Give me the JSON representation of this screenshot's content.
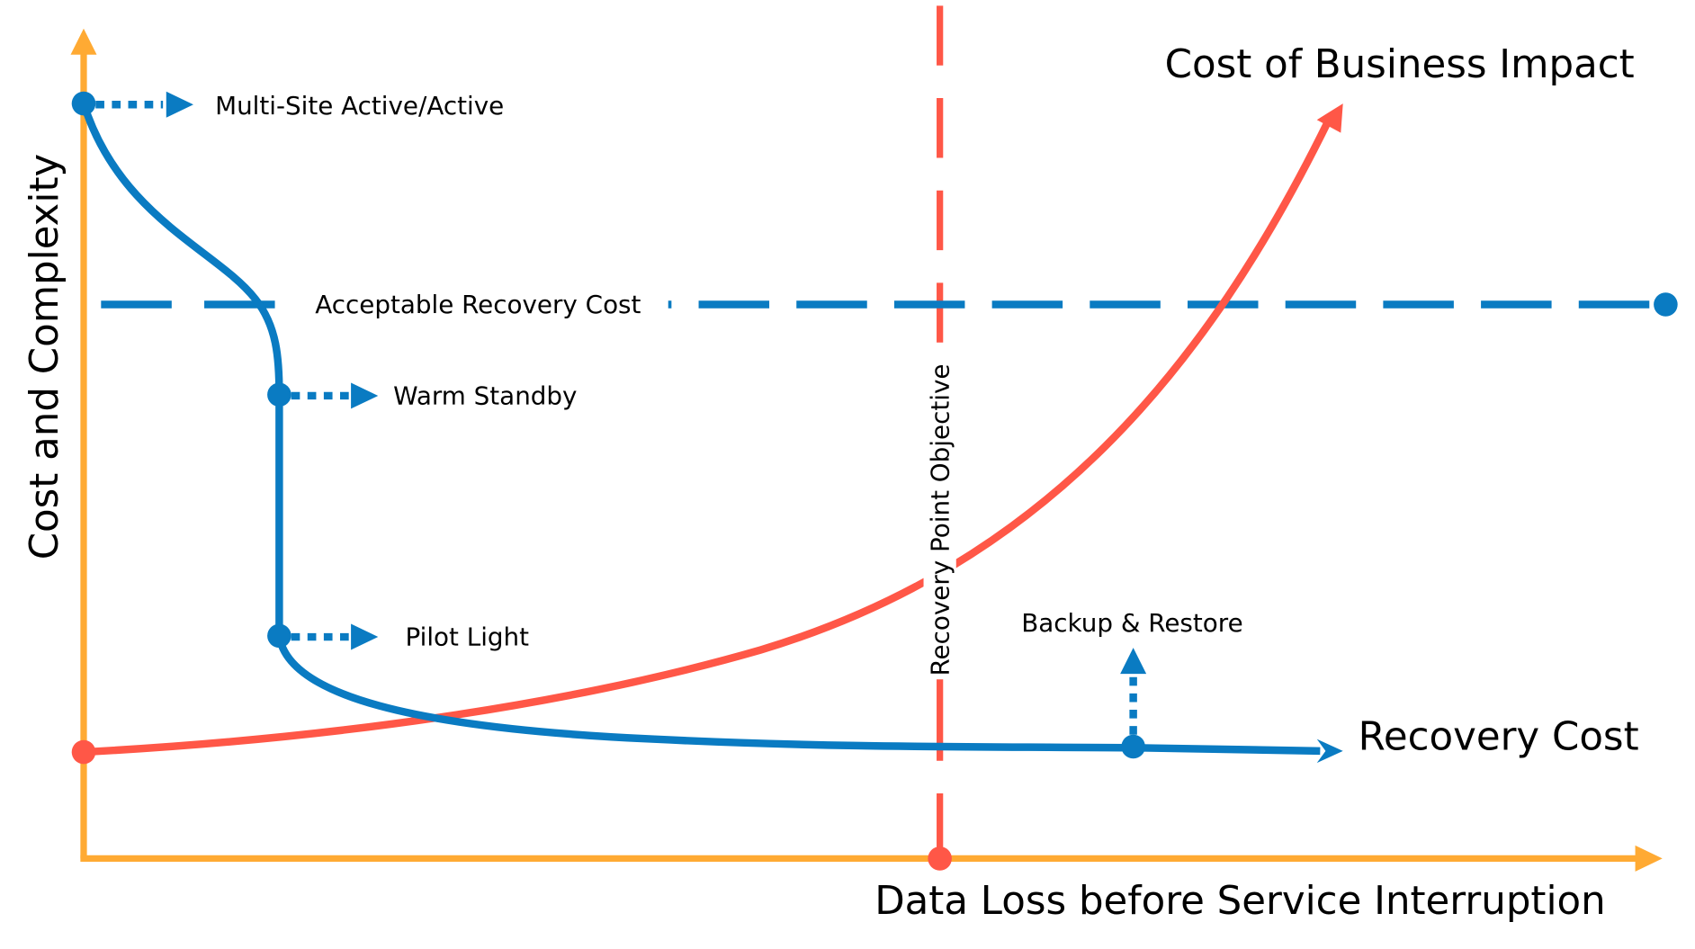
{
  "colors": {
    "blue": "#0A7BC2",
    "red": "#FF5747",
    "orange": "#FFAA33"
  },
  "axes": {
    "y_label": "Cost and Complexity",
    "x_label": "Data Loss before Service Interruption"
  },
  "curves": {
    "recovery_cost": "Recovery Cost",
    "business_impact": "Cost of Business Impact"
  },
  "thresholds": {
    "acceptable_recovery_cost": "Acceptable Recovery Cost",
    "recovery_point_objective": "Recovery Point Objective"
  },
  "strategies": [
    {
      "label": "Multi-Site Active/Active"
    },
    {
      "label": "Warm Standby"
    },
    {
      "label": "Pilot Light"
    },
    {
      "label": "Backup & Restore"
    }
  ]
}
